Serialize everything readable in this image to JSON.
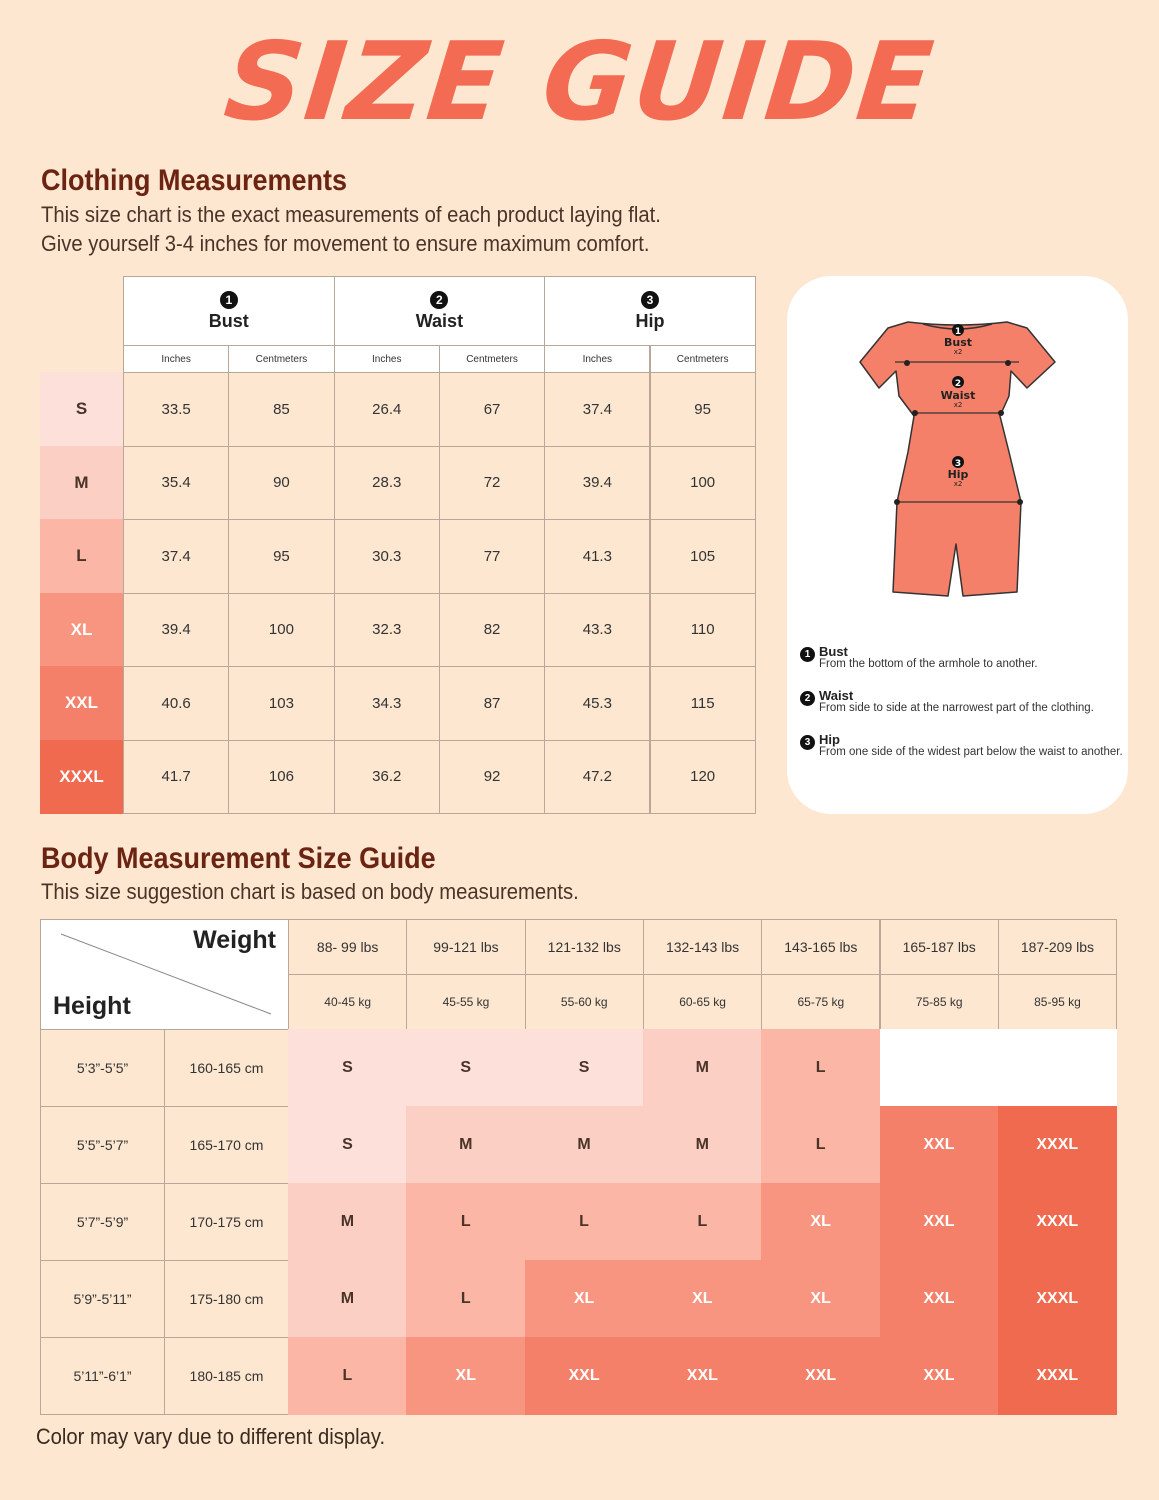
{
  "title": "SIZE GUIDE",
  "clothing": {
    "heading": "Clothing Measurements",
    "subtitle_line1": "This size chart is the exact measurements of each product laying flat.",
    "subtitle_line2": "Give yourself 3-4 inches for movement to ensure maximum comfort.",
    "groups": [
      {
        "num": "1",
        "label": "Bust"
      },
      {
        "num": "2",
        "label": "Waist"
      },
      {
        "num": "3",
        "label": "Hip"
      }
    ],
    "unit_inches": "Inches",
    "unit_cm": "Centmeters",
    "rows": [
      {
        "size": "S",
        "values": [
          "33.5",
          "85",
          "26.4",
          "67",
          "37.4",
          "95"
        ],
        "bg": "#fde0da",
        "fg": "#4a3428"
      },
      {
        "size": "M",
        "values": [
          "35.4",
          "90",
          "28.3",
          "72",
          "39.4",
          "100"
        ],
        "bg": "#fccfc4",
        "fg": "#4a3428"
      },
      {
        "size": "L",
        "values": [
          "37.4",
          "95",
          "30.3",
          "77",
          "41.3",
          "105"
        ],
        "bg": "#fbb6a6",
        "fg": "#4a3428"
      },
      {
        "size": "XL",
        "values": [
          "39.4",
          "100",
          "32.3",
          "82",
          "43.3",
          "110"
        ],
        "bg": "#f89580",
        "fg": "#ffffff"
      },
      {
        "size": "XXL",
        "values": [
          "40.6",
          "103",
          "34.3",
          "87",
          "45.3",
          "115"
        ],
        "bg": "#f5806a",
        "fg": "#ffffff"
      },
      {
        "size": "XXXL",
        "values": [
          "41.7",
          "106",
          "36.2",
          "92",
          "47.2",
          "120"
        ],
        "bg": "#f06a50",
        "fg": "#ffffff"
      }
    ]
  },
  "diagram": {
    "labels": [
      {
        "num": "1",
        "name": "Bust",
        "mult": "x2"
      },
      {
        "num": "2",
        "name": "Waist",
        "mult": "x2"
      },
      {
        "num": "3",
        "name": "Hip",
        "mult": "x2"
      }
    ],
    "legend": [
      {
        "num": "1",
        "title": "Bust",
        "desc": "From the bottom of the armhole to another."
      },
      {
        "num": "2",
        "title": "Waist",
        "desc": "From side to side at the narrowest part of the clothing."
      },
      {
        "num": "3",
        "title": "Hip",
        "desc": "From one side of the widest part below the waist to another."
      }
    ],
    "garment_color": "#f5806a"
  },
  "body": {
    "heading": "Body Measurement Size Guide",
    "subtitle": "This size suggestion chart is based on body measurements.",
    "weight_label": "Weight",
    "height_label": "Height",
    "weights_lbs": [
      "88- 99 lbs",
      "99-121 lbs",
      "121-132 lbs",
      "132-143 lbs",
      "143-165 lbs",
      "165-187 lbs",
      "187-209 lbs"
    ],
    "weights_kg": [
      "40-45 kg",
      "45-55 kg",
      "55-60 kg",
      "60-65 kg",
      "65-75 kg",
      "75-85 kg",
      "85-95 kg"
    ],
    "heights": [
      {
        "ft": "5’3”-5’5”",
        "cm": "160-165 cm",
        "sizes": [
          "S",
          "S",
          "S",
          "M",
          "L",
          "",
          ""
        ]
      },
      {
        "ft": "5’5”-5’7”",
        "cm": "165-170 cm",
        "sizes": [
          "S",
          "M",
          "M",
          "M",
          "L",
          "XXL",
          "XXXL"
        ]
      },
      {
        "ft": "5’7”-5’9”",
        "cm": "170-175 cm",
        "sizes": [
          "M",
          "L",
          "L",
          "L",
          "XL",
          "XXL",
          "XXXL"
        ]
      },
      {
        "ft": "5’9”-5’11”",
        "cm": "175-180 cm",
        "sizes": [
          "M",
          "L",
          "XL",
          "XL",
          "XL",
          "XXL",
          "XXXL"
        ]
      },
      {
        "ft": "5’11”-6’1”",
        "cm": "180-185 cm",
        "sizes": [
          "L",
          "XL",
          "XXL",
          "XXL",
          "XXL",
          "XXL",
          "XXXL"
        ]
      }
    ],
    "size_colors": {
      "S": {
        "bg": "#fde0da",
        "fg": "#4a3428"
      },
      "M": {
        "bg": "#fccfc4",
        "fg": "#4a3428"
      },
      "L": {
        "bg": "#fbb6a6",
        "fg": "#4a3428"
      },
      "XL": {
        "bg": "#f89580",
        "fg": "#ffffff"
      },
      "XXL": {
        "bg": "#f5806a",
        "fg": "#ffffff"
      },
      "XXXL": {
        "bg": "#f06a50",
        "fg": "#ffffff"
      },
      "": {
        "bg": "#ffffff",
        "fg": "#ffffff"
      }
    }
  },
  "footnote": "Color may vary due to different display."
}
